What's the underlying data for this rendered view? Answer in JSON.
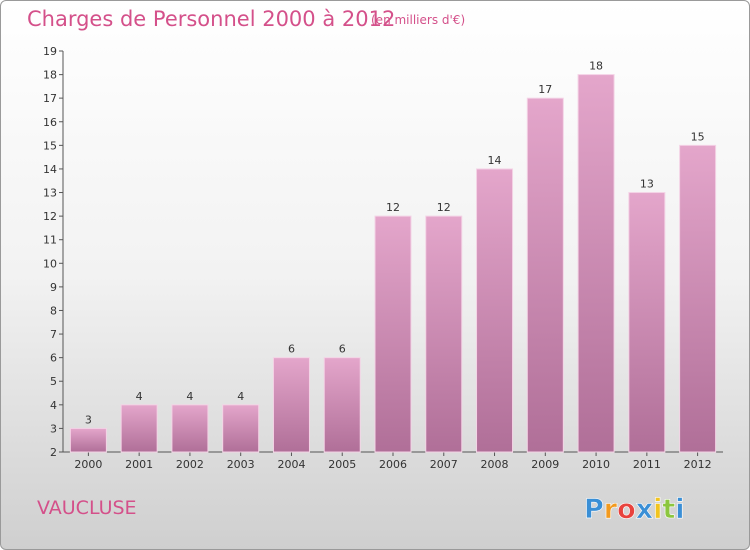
{
  "chart_data": {
    "type": "bar",
    "title": "Charges de Personnel 2000 à 2012",
    "subtitle": "(en milliers d'€)",
    "categories": [
      "2000",
      "2001",
      "2002",
      "2003",
      "2004",
      "2005",
      "2006",
      "2007",
      "2008",
      "2009",
      "2010",
      "2011",
      "2012"
    ],
    "values": [
      3,
      4,
      4,
      4,
      6,
      6,
      12,
      12,
      14,
      17,
      18,
      13,
      15
    ],
    "ylim": [
      2,
      19
    ],
    "yticks": [
      2,
      3,
      4,
      5,
      6,
      7,
      8,
      9,
      10,
      11,
      12,
      13,
      14,
      15,
      16,
      17,
      18,
      19
    ],
    "grid": false,
    "bar_color_top": "#e4a6cb",
    "bar_color_bottom": "#b06f98"
  },
  "region": "VAUCLUSE",
  "logo": {
    "text": "Proxiti",
    "colors": [
      "#3a8fd6",
      "#f29a1f",
      "#e8433e",
      "#3a8fd6",
      "#f2c41f",
      "#8cc63f",
      "#3a8fd6"
    ]
  }
}
